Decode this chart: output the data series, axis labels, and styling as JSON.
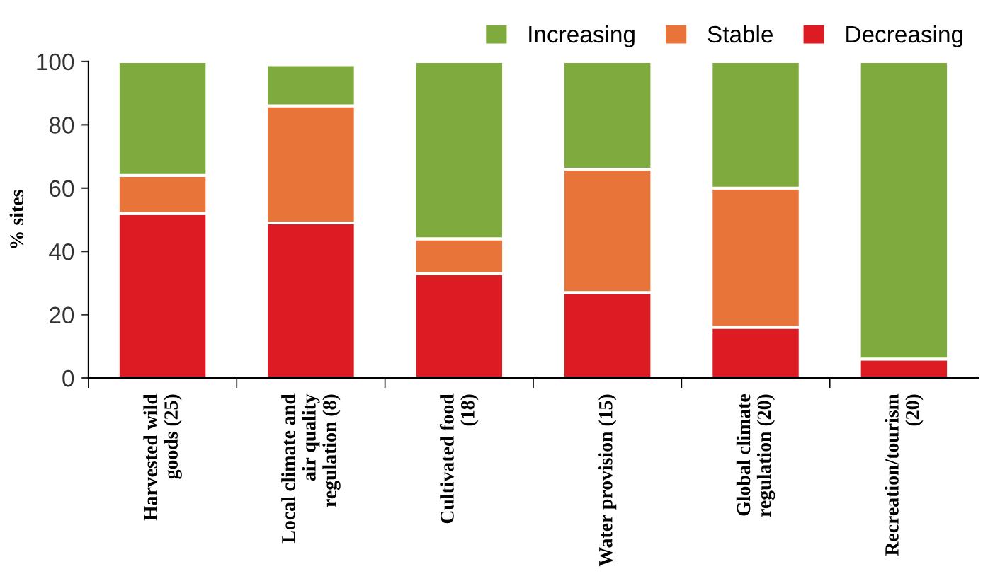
{
  "chart_data": {
    "type": "bar",
    "stacked": true,
    "ylabel": "% sites",
    "categories": [
      "Harvested wild\ngoods (25)",
      "Local climate and\nair quality\nregulation (8)",
      "Cultivated food\n(18)",
      "Water provision (15)",
      "Global climate\nregulation (20)",
      "Recreation/tourism\n(20)"
    ],
    "series": [
      {
        "name": "Decreasing",
        "color": "#dc1c22",
        "values": [
          52,
          49,
          33,
          27,
          16,
          6
        ]
      },
      {
        "name": "Stable",
        "color": "#e8743a",
        "values": [
          12,
          37,
          11,
          39,
          44,
          0
        ]
      },
      {
        "name": "Increasing",
        "color": "#7fab3e",
        "values": [
          36,
          13,
          56,
          34,
          40,
          94
        ]
      }
    ],
    "ylim": [
      0,
      100
    ],
    "yticks": [
      0,
      20,
      40,
      60,
      80,
      100
    ],
    "grid": false,
    "legend": "top right"
  }
}
